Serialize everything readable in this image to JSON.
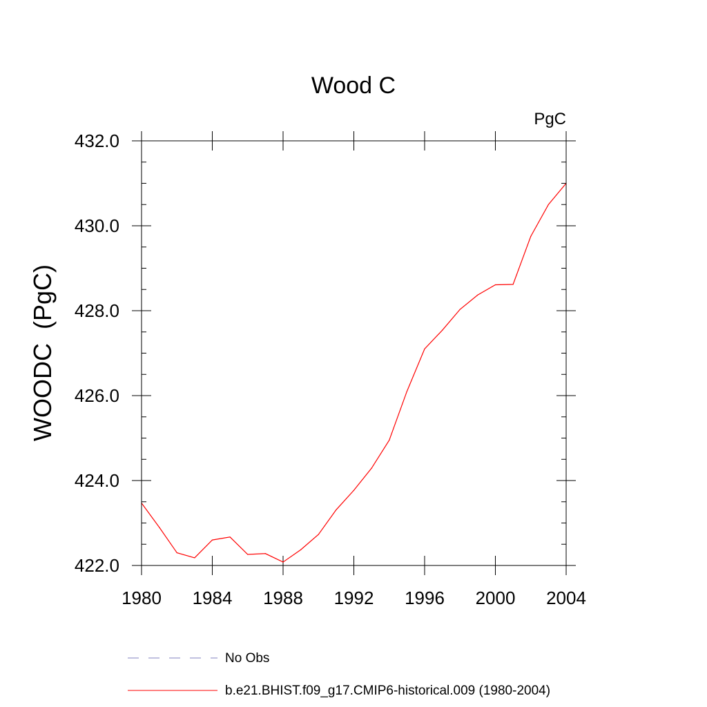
{
  "chart_data": {
    "type": "line",
    "title": "Wood C",
    "units_label": "PgC",
    "ylabel": "WOODC  (PgC)",
    "xlabel": "",
    "xlim": [
      1980,
      2004
    ],
    "ylim": [
      422.0,
      432.0
    ],
    "x_ticks": [
      "1980",
      "1984",
      "1988",
      "1992",
      "1996",
      "2000",
      "2004"
    ],
    "y_ticks": [
      "422.0",
      "424.0",
      "426.0",
      "428.0",
      "430.0",
      "432.0"
    ],
    "grid": false,
    "legend_position": "bottom",
    "series": [
      {
        "name": "b.e21.BHIST.f09_g17.CMIP6-historical.009 (1980-2004)",
        "color": "#ff0000",
        "style": "solid",
        "x": [
          1980,
          1981,
          1982,
          1983,
          1984,
          1985,
          1986,
          1987,
          1988,
          1989,
          1990,
          1991,
          1992,
          1993,
          1994,
          1995,
          1996,
          1997,
          1998,
          1999,
          2000,
          2001,
          2002,
          2003,
          2004
        ],
        "y": [
          423.47,
          422.9,
          422.3,
          422.18,
          422.6,
          422.67,
          422.26,
          422.28,
          422.08,
          422.37,
          422.73,
          423.31,
          423.77,
          424.29,
          424.95,
          426.1,
          427.1,
          427.54,
          428.03,
          428.37,
          428.61,
          428.62,
          429.75,
          430.5,
          431.0
        ]
      }
    ],
    "legend": [
      {
        "label": "No Obs",
        "color": "#8080c0",
        "style": "dashed"
      },
      {
        "label": "b.e21.BHIST.f09_g17.CMIP6-historical.009 (1980-2004)",
        "color": "#ff0000",
        "style": "solid"
      }
    ]
  }
}
